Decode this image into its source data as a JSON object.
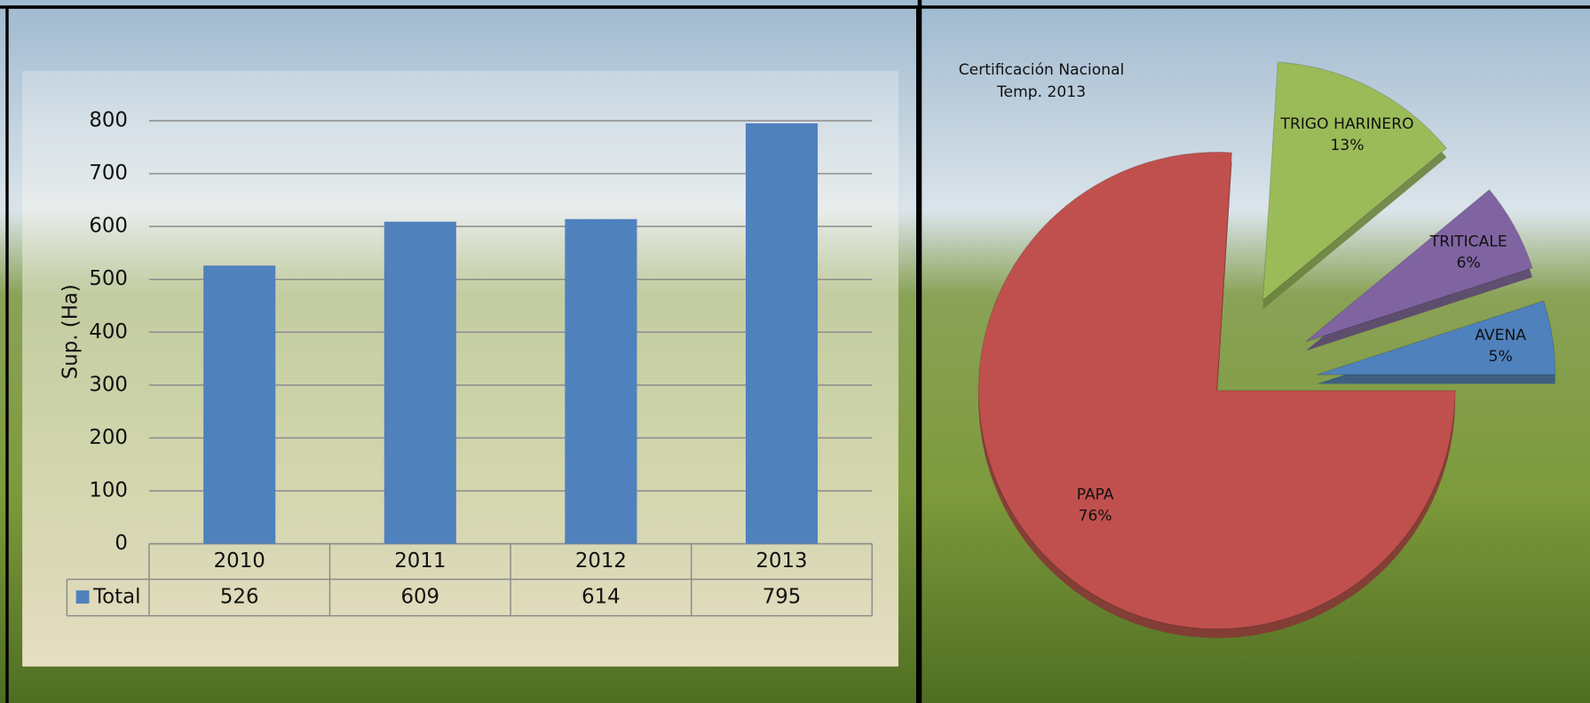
{
  "chart_data": [
    {
      "type": "bar",
      "y_label": "Sup. (Ha)",
      "categories": [
        "2010",
        "2011",
        "2012",
        "2013"
      ],
      "series": [
        {
          "name": "Total",
          "color": "#4f81bd",
          "values": [
            526,
            609,
            614,
            795
          ]
        }
      ],
      "ylim": [
        0,
        800
      ],
      "yticks": [
        0,
        100,
        200,
        300,
        400,
        500,
        600,
        700,
        800
      ],
      "grid": true
    },
    {
      "type": "pie",
      "title": "Certificación Nacional",
      "subtitle": "Temp. 2013",
      "categories": [
        "PAPA",
        "TRIGO HARINERO",
        "TRITICALE",
        "AVENA"
      ],
      "values": [
        76,
        13,
        6,
        5
      ],
      "value_labels": [
        "76%",
        "13%",
        "6%",
        "5%"
      ],
      "colors": [
        "#c0504d",
        "#9bbb59",
        "#8064a2",
        "#4f81bd"
      ]
    }
  ]
}
